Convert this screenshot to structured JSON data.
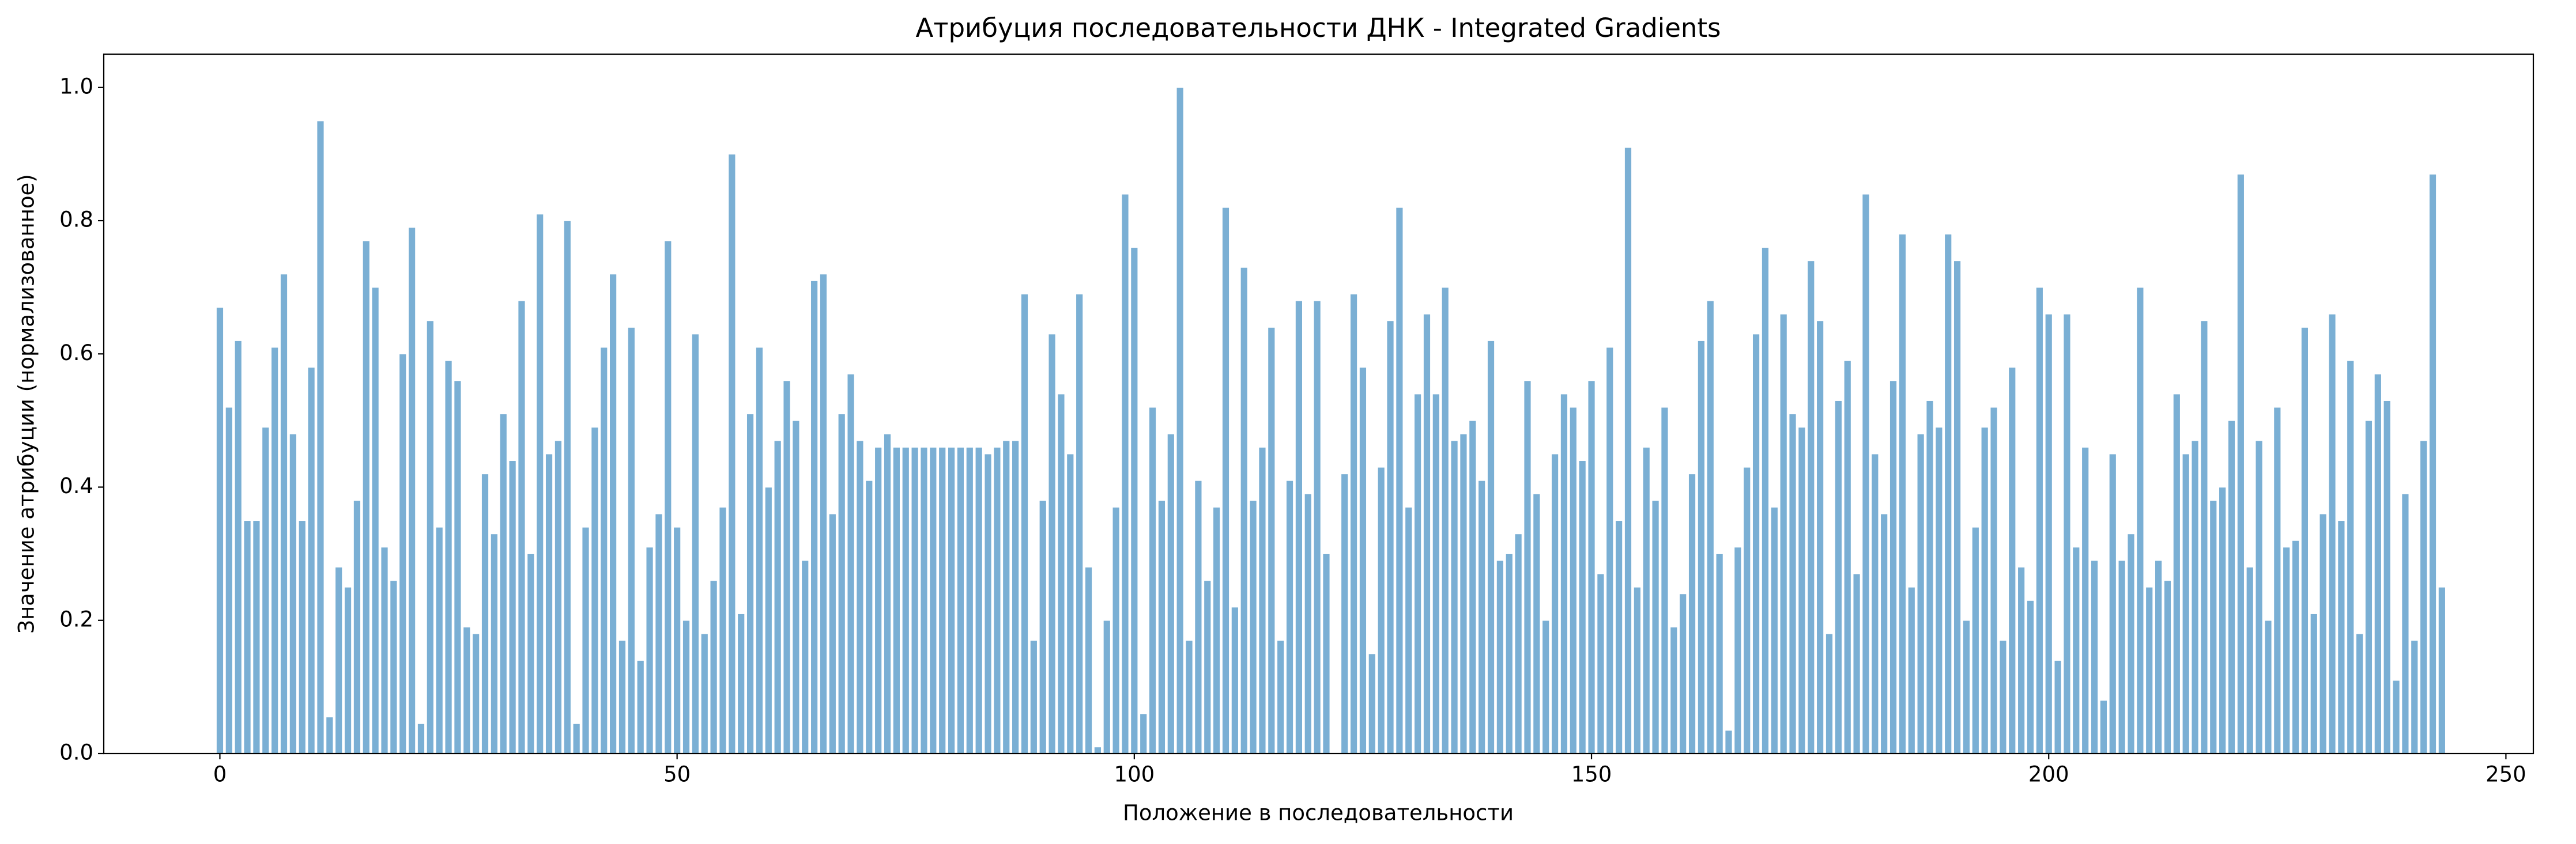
{
  "chart_data": {
    "type": "bar",
    "title": "Атрибуция последовательности ДНК - Integrated Gradients",
    "xlabel": "Положение в последовательности",
    "ylabel": "Значение атрибуции (нормализованное)",
    "color": "#7aafd4",
    "x": [
      0,
      1,
      2,
      3,
      4,
      5,
      6,
      7,
      8,
      9,
      10,
      11,
      12,
      13,
      14,
      15,
      16,
      17,
      18,
      19,
      20,
      21,
      22,
      23,
      24,
      25,
      26,
      27,
      28,
      29,
      30,
      31,
      32,
      33,
      34,
      35,
      36,
      37,
      38,
      39,
      40,
      41,
      42,
      43,
      44,
      45,
      46,
      47,
      48,
      49,
      50,
      51,
      52,
      53,
      54,
      55,
      56,
      57,
      58,
      59,
      60,
      61,
      62,
      63,
      64,
      65,
      66,
      67,
      68,
      69,
      70,
      71,
      72,
      73,
      74,
      75,
      76,
      77,
      78,
      79,
      80,
      81,
      82,
      83,
      84,
      85,
      86,
      87,
      88,
      89,
      90,
      91,
      92,
      93,
      94,
      95,
      96,
      97,
      98,
      99,
      100,
      101,
      102,
      103,
      104,
      105,
      106,
      107,
      108,
      109,
      110,
      111,
      112,
      113,
      114,
      115,
      116,
      117,
      118,
      119,
      120,
      121,
      122,
      123,
      124,
      125,
      126,
      127,
      128,
      129,
      130,
      131,
      132,
      133,
      134,
      135,
      136,
      137,
      138,
      139,
      140,
      141,
      142,
      143,
      144,
      145,
      146,
      147,
      148,
      149,
      150,
      151,
      152,
      153,
      154,
      155,
      156,
      157,
      158,
      159,
      160,
      161,
      162,
      163,
      164,
      165,
      166,
      167,
      168,
      169,
      170,
      171,
      172,
      173,
      174,
      175,
      176,
      177,
      178,
      179,
      180,
      181,
      182,
      183,
      184,
      185,
      186,
      187,
      188,
      189,
      190,
      191,
      192,
      193,
      194,
      195,
      196,
      197,
      198,
      199,
      200,
      201,
      202,
      203,
      204,
      205,
      206,
      207,
      208,
      209,
      210,
      211,
      212,
      213,
      214,
      215,
      216,
      217,
      218,
      219,
      220,
      221,
      222,
      223,
      224,
      225,
      226,
      227,
      228,
      229,
      230,
      231,
      232,
      233,
      234,
      235,
      236,
      237,
      238,
      239,
      240,
      241,
      242,
      243
    ],
    "values": [
      0.67,
      0.52,
      0.62,
      0.35,
      0.35,
      0.49,
      0.61,
      0.72,
      0.48,
      0.35,
      0.58,
      0.95,
      0.055,
      0.28,
      0.25,
      0.38,
      0.77,
      0.7,
      0.31,
      0.26,
      0.6,
      0.79,
      0.045,
      0.65,
      0.34,
      0.59,
      0.56,
      0.19,
      0.18,
      0.42,
      0.33,
      0.51,
      0.44,
      0.68,
      0.3,
      0.81,
      0.45,
      0.47,
      0.8,
      0.045,
      0.34,
      0.49,
      0.61,
      0.72,
      0.17,
      0.64,
      0.14,
      0.31,
      0.36,
      0.77,
      0.34,
      0.2,
      0.63,
      0.18,
      0.26,
      0.37,
      0.9,
      0.21,
      0.51,
      0.61,
      0.4,
      0.47,
      0.56,
      0.5,
      0.29,
      0.71,
      0.72,
      0.36,
      0.51,
      0.57,
      0.47,
      0.41,
      0.46,
      0.48,
      0.46,
      0.46,
      0.46,
      0.46,
      0.46,
      0.46,
      0.46,
      0.46,
      0.46,
      0.46,
      0.45,
      0.46,
      0.47,
      0.47,
      0.69,
      0.17,
      0.38,
      0.63,
      0.54,
      0.45,
      0.69,
      0.28,
      0.01,
      0.2,
      0.37,
      0.84,
      0.76,
      0.06,
      0.52,
      0.38,
      0.48,
      1.0,
      0.17,
      0.41,
      0.26,
      0.37,
      0.82,
      0.22,
      0.73,
      0.38,
      0.46,
      0.64,
      0.17,
      0.41,
      0.68,
      0.39,
      0.68,
      0.3,
      0,
      0.42,
      0.69,
      0.58,
      0.15,
      0.43,
      0.65,
      0.82,
      0.37,
      0.54,
      0.66,
      0.54,
      0.7,
      0.47,
      0.48,
      0.5,
      0.41,
      0.62,
      0.29,
      0.3,
      0.33,
      0.56,
      0.39,
      0.2,
      0.45,
      0.54,
      0.52,
      0.44,
      0.56,
      0.27,
      0.61,
      0.35,
      0.91,
      0.25,
      0.46,
      0.38,
      0.52,
      0.19,
      0.24,
      0.42,
      0.62,
      0.68,
      0.3,
      0.035,
      0.31,
      0.43,
      0.63,
      0.76,
      0.37,
      0.66,
      0.51,
      0.49,
      0.74,
      0.65,
      0.18,
      0.53,
      0.59,
      0.27,
      0.84,
      0.45,
      0.36,
      0.56,
      0.78,
      0.25,
      0.48,
      0.53,
      0.49,
      0.78,
      0.74,
      0.2,
      0.34,
      0.49,
      0.52,
      0.17,
      0.58,
      0.28,
      0.23,
      0.7,
      0.66,
      0.14,
      0.66,
      0.31,
      0.46,
      0.29,
      0.08,
      0.45,
      0.29,
      0.33,
      0.7,
      0.25,
      0.29,
      0.26,
      0.54,
      0.45,
      0.47,
      0.65,
      0.38,
      0.4,
      0.5,
      0.87,
      0.28,
      0.47,
      0.2,
      0.52,
      0.31,
      0.32,
      0.64,
      0.21,
      0.36,
      0.66,
      0.35,
      0.59,
      0.18,
      0.5,
      0.57,
      0.53,
      0.11,
      0.39,
      0.17,
      0.47,
      0.87,
      0.25
    ],
    "xlim": [
      -12.7,
      253
    ],
    "ylim": [
      0,
      1.05
    ],
    "xticks": [
      0,
      50,
      100,
      150,
      200,
      250
    ],
    "yticks": [
      {
        "value": 0,
        "label": "0.0"
      },
      {
        "value": 0.2,
        "label": "0.2"
      },
      {
        "value": 0.4,
        "label": "0.4"
      },
      {
        "value": 0.6,
        "label": "0.6"
      },
      {
        "value": 0.8,
        "label": "0.8"
      },
      {
        "value": 1,
        "label": "1.0"
      }
    ]
  }
}
